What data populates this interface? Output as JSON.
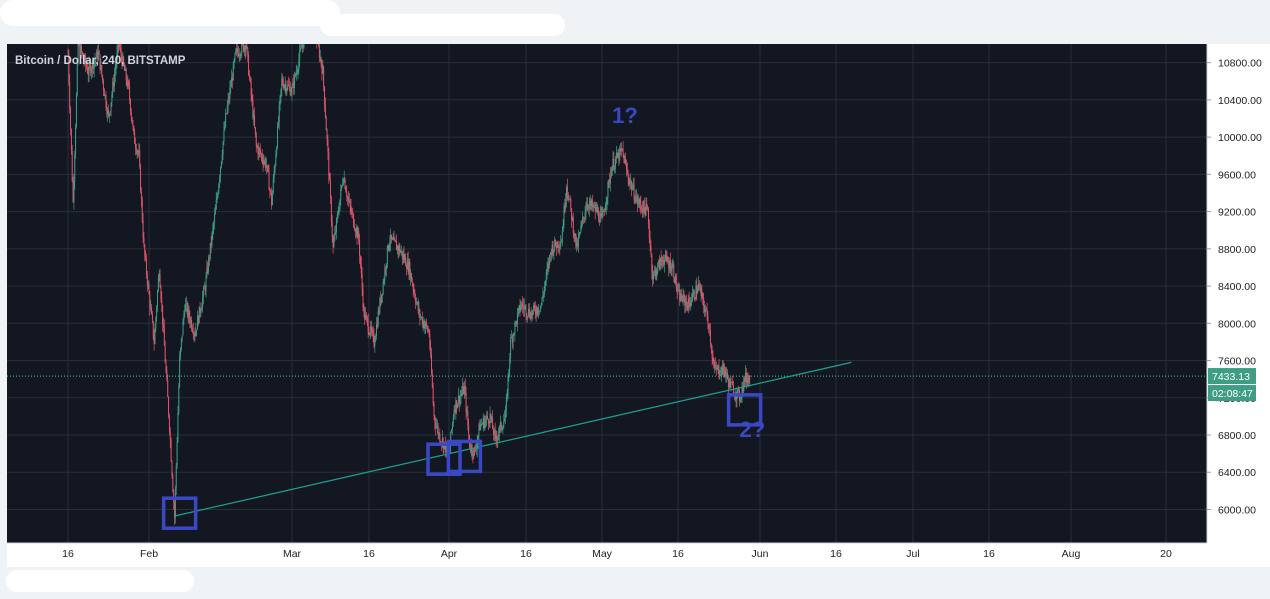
{
  "chart_data": {
    "type": "candlestick",
    "title": "Bitcoin / Dollar, 240, BITSTAMP",
    "colors": {
      "background": "#131722",
      "grid": "#2a2e39",
      "up": "#3e9e84",
      "down": "#e0556a",
      "trendline": "#1ba391",
      "price_line": "#4bbf9c",
      "price_label": "#3e9e84",
      "annotation": "#3b48c4",
      "axis_text": "#1e1e1e"
    },
    "ylim": [
      5640,
      11000
    ],
    "y_ticks": [
      "10800.00",
      "10400.00",
      "10000.00",
      "9600.00",
      "9200.00",
      "8800.00",
      "8400.00",
      "8000.00",
      "7600.00",
      "7200.00",
      "6800.00",
      "6400.00",
      "6000.00"
    ],
    "x_ticks": [
      "16",
      "Feb",
      "Mar",
      "16",
      "Apr",
      "16",
      "May",
      "16",
      "Jun",
      "16",
      "Jul",
      "16",
      "Aug",
      "20"
    ],
    "x_tick_dates": [
      "2018-01-16",
      "2018-02-01",
      "2018-03-01",
      "2018-03-16",
      "2018-04-01",
      "2018-04-16",
      "2018-05-01",
      "2018-05-16",
      "2018-06-01",
      "2018-06-16",
      "2018-07-01",
      "2018-07-16",
      "2018-08-01",
      "2018-08-20"
    ],
    "last_price": "7433.13",
    "countdown": "02:08:47",
    "price_path": [
      [
        "2018-01-16",
        10900
      ],
      [
        "2018-01-17",
        9300
      ],
      [
        "2018-01-18",
        11000
      ],
      [
        "2018-01-20",
        10700
      ],
      [
        "2018-01-22",
        10900
      ],
      [
        "2018-01-24",
        10200
      ],
      [
        "2018-01-26",
        11000
      ],
      [
        "2018-01-28",
        10500
      ],
      [
        "2018-01-29",
        10000
      ],
      [
        "2018-01-30",
        9800
      ],
      [
        "2018-01-31",
        8800
      ],
      [
        "2018-02-02",
        7800
      ],
      [
        "2018-02-03",
        8600
      ],
      [
        "2018-02-05",
        6900
      ],
      [
        "2018-02-06",
        5920
      ],
      [
        "2018-02-07",
        7600
      ],
      [
        "2018-02-08",
        8200
      ],
      [
        "2018-02-10",
        7900
      ],
      [
        "2018-02-12",
        8400
      ],
      [
        "2018-02-14",
        9200
      ],
      [
        "2018-02-16",
        10200
      ],
      [
        "2018-02-18",
        10900
      ],
      [
        "2018-02-20",
        11000
      ],
      [
        "2018-02-22",
        9900
      ],
      [
        "2018-02-24",
        9700
      ],
      [
        "2018-02-25",
        9300
      ],
      [
        "2018-02-27",
        10600
      ],
      [
        "2018-03-01",
        10500
      ],
      [
        "2018-03-03",
        11000
      ],
      [
        "2018-03-05",
        11300
      ],
      [
        "2018-03-07",
        10700
      ],
      [
        "2018-03-08",
        9800
      ],
      [
        "2018-03-09",
        8800
      ],
      [
        "2018-03-11",
        9600
      ],
      [
        "2018-03-12",
        9300
      ],
      [
        "2018-03-14",
        8900
      ],
      [
        "2018-03-15",
        8100
      ],
      [
        "2018-03-17",
        7800
      ],
      [
        "2018-03-19",
        8500
      ],
      [
        "2018-03-20",
        8900
      ],
      [
        "2018-03-22",
        8800
      ],
      [
        "2018-03-24",
        8600
      ],
      [
        "2018-03-26",
        8100
      ],
      [
        "2018-03-28",
        7900
      ],
      [
        "2018-03-29",
        7000
      ],
      [
        "2018-03-30",
        6800
      ],
      [
        "2018-04-01",
        6600
      ],
      [
        "2018-04-02",
        7100
      ],
      [
        "2018-04-04",
        7300
      ],
      [
        "2018-04-05",
        6700
      ],
      [
        "2018-04-06",
        6600
      ],
      [
        "2018-04-07",
        6900
      ],
      [
        "2018-04-09",
        7000
      ],
      [
        "2018-04-10",
        6750
      ],
      [
        "2018-04-12",
        7000
      ],
      [
        "2018-04-13",
        7800
      ],
      [
        "2018-04-15",
        8200
      ],
      [
        "2018-04-17",
        8100
      ],
      [
        "2018-04-19",
        8200
      ],
      [
        "2018-04-21",
        8800
      ],
      [
        "2018-04-23",
        8900
      ],
      [
        "2018-04-24",
        9500
      ],
      [
        "2018-04-26",
        8800
      ],
      [
        "2018-04-28",
        9300
      ],
      [
        "2018-04-30",
        9200
      ],
      [
        "2018-05-01",
        9100
      ],
      [
        "2018-05-03",
        9700
      ],
      [
        "2018-05-05",
        9850
      ],
      [
        "2018-05-06",
        9600
      ],
      [
        "2018-05-08",
        9300
      ],
      [
        "2018-05-10",
        9200
      ],
      [
        "2018-05-11",
        8500
      ],
      [
        "2018-05-13",
        8700
      ],
      [
        "2018-05-15",
        8600
      ],
      [
        "2018-05-16",
        8300
      ],
      [
        "2018-05-18",
        8200
      ],
      [
        "2018-05-20",
        8400
      ],
      [
        "2018-05-22",
        8000
      ],
      [
        "2018-05-23",
        7500
      ],
      [
        "2018-05-25",
        7500
      ],
      [
        "2018-05-26",
        7350
      ],
      [
        "2018-05-28",
        7200
      ],
      [
        "2018-05-29",
        7400
      ],
      [
        "2018-05-30",
        7433
      ]
    ],
    "trendline": [
      [
        "2018-02-06",
        5930
      ],
      [
        "2018-06-19",
        7580
      ]
    ],
    "annotations": {
      "label_1": "1?",
      "label_2": "2?",
      "boxes": [
        {
          "date": "2018-02-07",
          "price": 5960
        },
        {
          "date": "2018-03-31",
          "price": 6540
        },
        {
          "date": "2018-04-04",
          "price": 6570
        },
        {
          "date": "2018-05-29",
          "price": 7070
        }
      ]
    }
  }
}
